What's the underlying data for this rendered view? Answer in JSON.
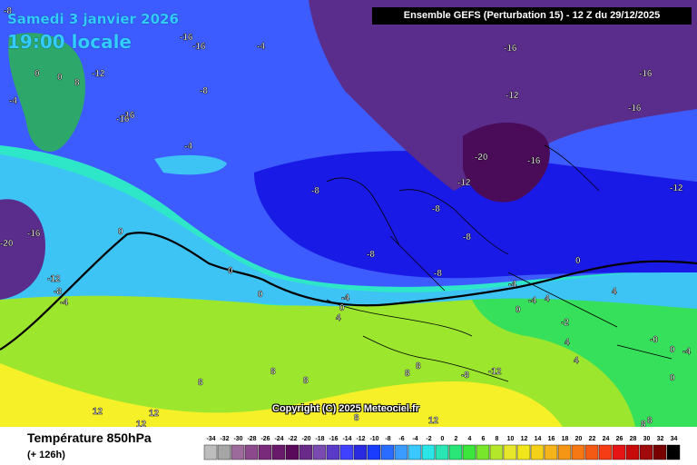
{
  "header": {
    "valid_date": "Samedi 3 janvier 2026",
    "valid_time": "19:00 locale",
    "run_info": "Ensemble GEFS  (Perturbation 15)  -  12 Z du 29/12/2025"
  },
  "copyright": "Copyright (C) 2025 Meteociel.fr",
  "footer": {
    "parameter_title": "Température 850hPa",
    "lead_time": "(+ 126h)"
  },
  "colors": {
    "very_cold": "#4a0b58",
    "cold_purple": "#5a2c8c",
    "deep_blue": "#1a1ae6",
    "blue": "#3d5cff",
    "cyan": "#3ec3f5",
    "teal": "#2ee6c8",
    "green": "#37e05a",
    "light_green": "#9ce62e",
    "yellow": "#f5f028",
    "zero_isotherm": "#000000"
  },
  "color_scale": {
    "labels": [
      "-34",
      "-32",
      "-30",
      "-28",
      "-26",
      "-24",
      "-22",
      "-20",
      "-18",
      "-16",
      "-14",
      "-12",
      "-10",
      "-8",
      "-6",
      "-4",
      "-2",
      "0",
      "2",
      "4",
      "6",
      "8",
      "10",
      "12",
      "14",
      "16",
      "18",
      "20",
      "22",
      "24",
      "26",
      "28",
      "30",
      "32",
      "34"
    ],
    "colors": [
      "#bdbdbd",
      "#a6a6a6",
      "#9c6b9c",
      "#8c4a8c",
      "#7a2a7a",
      "#6a1a6a",
      "#5a0a5a",
      "#6a2a8a",
      "#7a4ab0",
      "#5a3ac8",
      "#4040ff",
      "#2a2ae0",
      "#1a3cff",
      "#2a6cff",
      "#3a9cff",
      "#3ac8ff",
      "#2ae6e6",
      "#2ae6b4",
      "#2ae678",
      "#3ce63c",
      "#78e62a",
      "#b4e62a",
      "#e6e62a",
      "#f0e61a",
      "#f5d21a",
      "#f5b41a",
      "#f59614",
      "#f57814",
      "#f55a14",
      "#f53c14",
      "#e61414",
      "#c80a0a",
      "#a00a0a",
      "#780000",
      "#000000"
    ]
  },
  "isotherm_labels": [
    {
      "text": "-8",
      "pos": "top-left"
    },
    {
      "text": "-16",
      "pos": "greenland-north"
    },
    {
      "text": "-16",
      "pos": "greenland-north-2"
    },
    {
      "text": "-4",
      "pos": "svalbard"
    },
    {
      "text": "-16",
      "pos": "arctic-top"
    },
    {
      "text": "-16",
      "pos": "northeast-1"
    },
    {
      "text": "-16",
      "pos": "northeast-2"
    },
    {
      "text": "-12",
      "pos": "greenland-1"
    },
    {
      "text": "0",
      "pos": "greenland-coast-1"
    },
    {
      "text": "0",
      "pos": "greenland-coast-2"
    },
    {
      "text": "8",
      "pos": "greenland-coast-3"
    },
    {
      "text": "-4",
      "pos": "greenland-west"
    },
    {
      "text": "-8",
      "pos": "greenland-east"
    },
    {
      "text": "-12",
      "pos": "norwegian-sea"
    },
    {
      "text": "-16",
      "pos": "north-cape"
    },
    {
      "text": "-16",
      "pos": "greenland-south"
    },
    {
      "text": "-4",
      "pos": "atlantic-north"
    },
    {
      "text": "-20",
      "pos": "scandinavia"
    },
    {
      "text": "-16",
      "pos": "finland"
    },
    {
      "text": "-12",
      "pos": "russia"
    },
    {
      "text": "-12",
      "pos": "norway-south"
    },
    {
      "text": "-8",
      "pos": "atlantic-central"
    },
    {
      "text": "-8",
      "pos": "north-sea"
    },
    {
      "text": "-8",
      "pos": "germany"
    },
    {
      "text": "-8",
      "pos": "france-north"
    },
    {
      "text": "-8",
      "pos": "france-central"
    },
    {
      "text": "-20",
      "pos": "canada"
    },
    {
      "text": "-16",
      "pos": "labrador"
    },
    {
      "text": "0",
      "pos": "atlantic-west"
    },
    {
      "text": "0",
      "pos": "atlantic-mid"
    },
    {
      "text": "0",
      "pos": "atlantic-mid-2"
    },
    {
      "text": "-12",
      "pos": "newfoundland"
    },
    {
      "text": "-8",
      "pos": "newfoundland-2"
    },
    {
      "text": "-4",
      "pos": "newfoundland-3"
    },
    {
      "text": "-4",
      "pos": "biscay"
    },
    {
      "text": "0",
      "pos": "biscay-2"
    },
    {
      "text": "4",
      "pos": "iberia-north"
    },
    {
      "text": "-4",
      "pos": "alps"
    },
    {
      "text": "0",
      "pos": "alps-2"
    },
    {
      "text": "-4",
      "pos": "balkans"
    },
    {
      "text": "4",
      "pos": "italy"
    },
    {
      "text": "4",
      "pos": "greece-north"
    },
    {
      "text": "4",
      "pos": "turkey"
    },
    {
      "text": "0",
      "pos": "black-sea"
    },
    {
      "text": "-2",
      "pos": "greece-west"
    },
    {
      "text": "4",
      "pos": "greece"
    },
    {
      "text": "-0",
      "pos": "turkey-east"
    },
    {
      "text": "0",
      "pos": "turkey-east-2"
    },
    {
      "text": "-4",
      "pos": "caucasus"
    },
    {
      "text": "0",
      "pos": "cyprus"
    },
    {
      "text": "8",
      "pos": "africa-nw-1"
    },
    {
      "text": "8",
      "pos": "africa-nw-2"
    },
    {
      "text": "8",
      "pos": "africa-nw-3"
    },
    {
      "text": "8",
      "pos": "atlas"
    },
    {
      "text": "8",
      "pos": "tunisia"
    },
    {
      "text": "-8",
      "pos": "libya"
    },
    {
      "text": "-12",
      "pos": "libya-2"
    },
    {
      "text": "12",
      "pos": "atlantic-south-1"
    },
    {
      "text": "12",
      "pos": "atlantic-south-2"
    },
    {
      "text": "12",
      "pos": "atlantic-south-3"
    },
    {
      "text": "8",
      "pos": "sahara"
    },
    {
      "text": "12",
      "pos": "sahara-2"
    },
    {
      "text": "8",
      "pos": "egypt"
    },
    {
      "text": "8",
      "pos": "egypt-2"
    }
  ]
}
